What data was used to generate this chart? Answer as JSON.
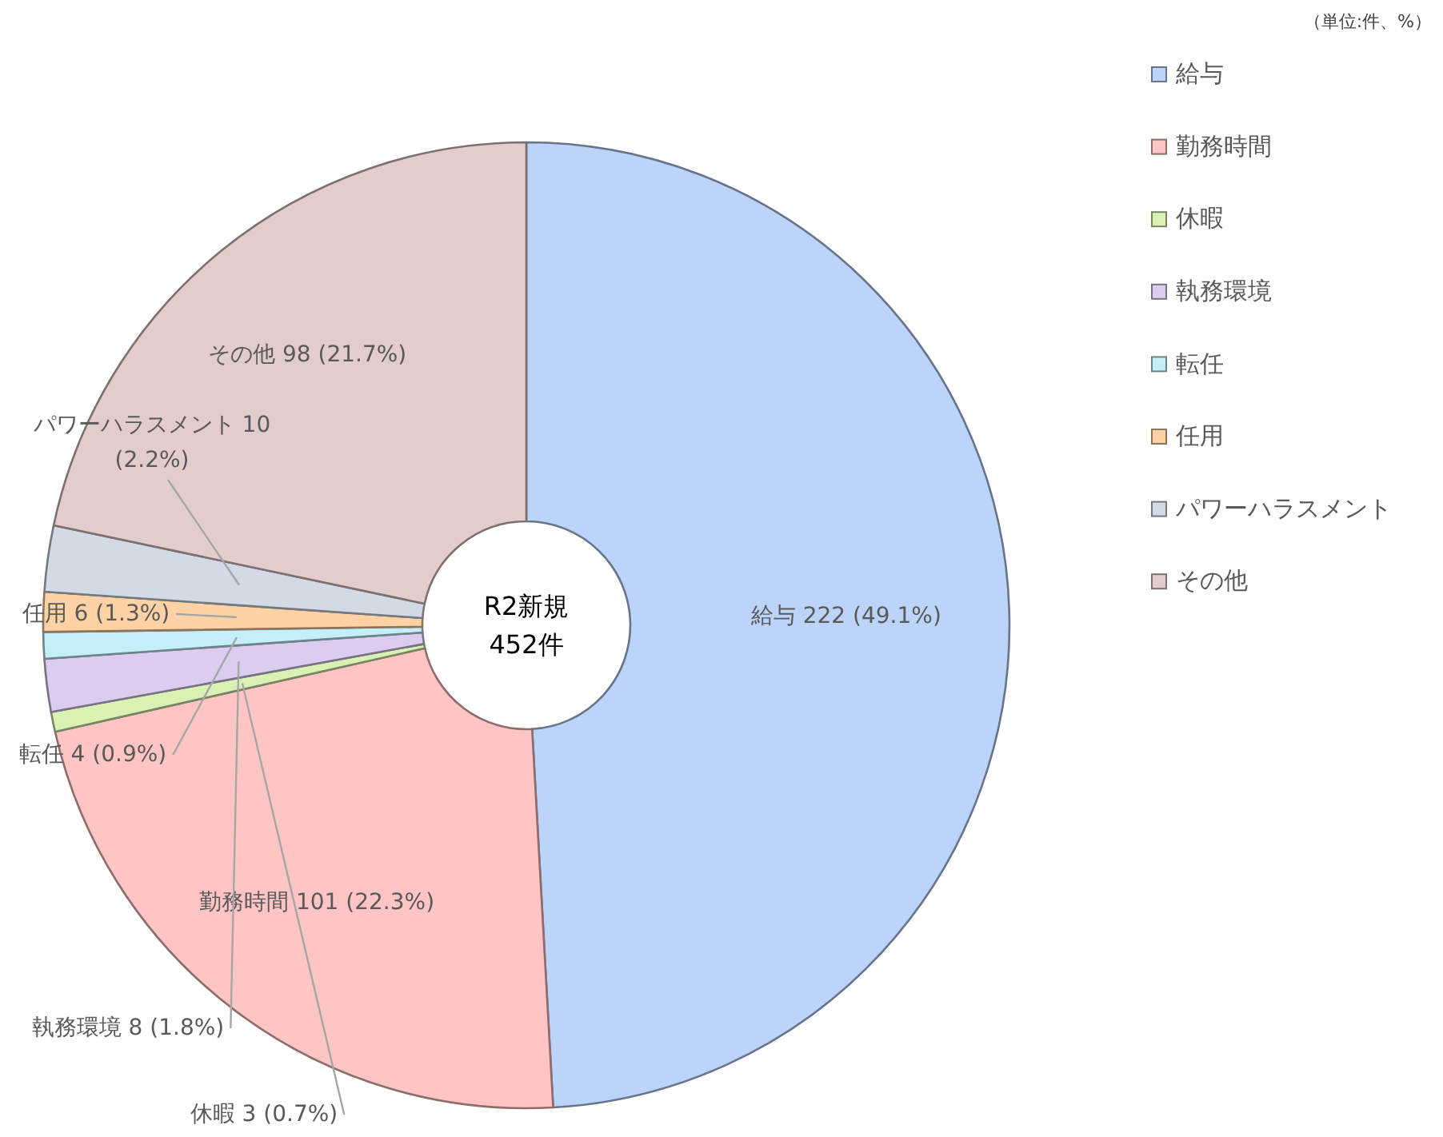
{
  "chart_data": {
    "type": "donut",
    "subtitle": "（単位:件、%）",
    "annotations": [
      "R2新規",
      "452件"
    ],
    "categories": [
      "給与",
      "勤務時間",
      "休暇",
      "執務環境",
      "転任",
      "任用",
      "パワーハラスメント",
      "その他"
    ],
    "values": [
      222,
      101,
      3,
      8,
      4,
      6,
      10,
      98
    ],
    "value_labels": [
      "222 (49.1%)",
      "101 (22.3%)",
      "3 (0.7%)",
      "8 (1.8%)",
      "4 (0.9%)",
      "6 (1.3%)",
      "10 (2.2%)",
      "98 (21.7%)"
    ],
    "colors": [
      "#bcd3fa",
      "#ffc4c4",
      "#d9f2b4",
      "#dccdf0",
      "#c4eef8",
      "#ffd2a6",
      "#d3dae6",
      "#e3cccc"
    ],
    "legend": "right"
  }
}
